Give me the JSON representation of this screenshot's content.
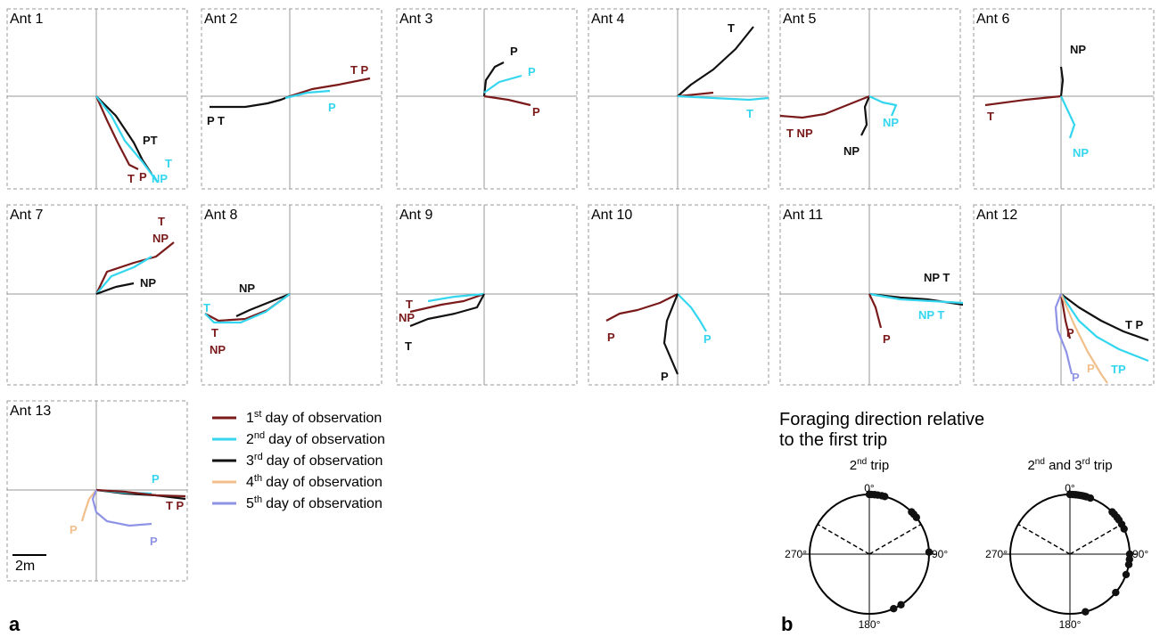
{
  "panels": [
    {
      "name": "Ant 1",
      "marks": [
        {
          "text": "PT",
          "c": "k"
        },
        {
          "text": "T",
          "c": "r"
        },
        {
          "text": "P",
          "c": "r"
        },
        {
          "text": "T",
          "c": "c"
        },
        {
          "text": "NP",
          "c": "c"
        }
      ]
    },
    {
      "name": "Ant 2",
      "marks": [
        {
          "text": "T P",
          "c": "r"
        },
        {
          "text": "P",
          "c": "c"
        },
        {
          "text": "P T",
          "c": "k"
        }
      ]
    },
    {
      "name": "Ant 3",
      "marks": [
        {
          "text": "P",
          "c": "k"
        },
        {
          "text": "P",
          "c": "c"
        },
        {
          "text": "P",
          "c": "r"
        }
      ]
    },
    {
      "name": "Ant 4",
      "marks": [
        {
          "text": "T",
          "c": "k"
        },
        {
          "text": "T",
          "c": "c"
        }
      ]
    },
    {
      "name": "Ant 5",
      "marks": [
        {
          "text": "NP",
          "c": "c"
        },
        {
          "text": "T NP",
          "c": "r"
        },
        {
          "text": "NP",
          "c": "k"
        }
      ]
    },
    {
      "name": "Ant 6",
      "marks": [
        {
          "text": "NP",
          "c": "k"
        },
        {
          "text": "T",
          "c": "r"
        },
        {
          "text": "NP",
          "c": "c"
        }
      ]
    },
    {
      "name": "Ant 7",
      "marks": [
        {
          "text": "T",
          "c": "r"
        },
        {
          "text": "NP",
          "c": "r"
        },
        {
          "text": "NP",
          "c": "k"
        }
      ]
    },
    {
      "name": "Ant 8",
      "marks": [
        {
          "text": "NP",
          "c": "k"
        },
        {
          "text": "T",
          "c": "c"
        },
        {
          "text": "T",
          "c": "r"
        },
        {
          "text": "NP",
          "c": "r"
        }
      ]
    },
    {
      "name": "Ant 9",
      "marks": [
        {
          "text": "T",
          "c": "r"
        },
        {
          "text": "NP",
          "c": "r"
        },
        {
          "text": "T",
          "c": "k"
        }
      ]
    },
    {
      "name": "Ant 10",
      "marks": [
        {
          "text": "P",
          "c": "r"
        },
        {
          "text": "P",
          "c": "c"
        },
        {
          "text": "P",
          "c": "k"
        }
      ]
    },
    {
      "name": "Ant 11",
      "marks": [
        {
          "text": "NP T",
          "c": "k"
        },
        {
          "text": "NP  T",
          "c": "c"
        },
        {
          "text": "P",
          "c": "r"
        }
      ]
    },
    {
      "name": "Ant 12",
      "marks": [
        {
          "text": "T P",
          "c": "k"
        },
        {
          "text": "P",
          "c": "r"
        },
        {
          "text": "TP",
          "c": "c"
        },
        {
          "text": "P",
          "c": "o"
        },
        {
          "text": "P",
          "c": "v"
        }
      ]
    },
    {
      "name": "Ant 13",
      "marks": [
        {
          "text": "P",
          "c": "c"
        },
        {
          "text": "T P",
          "c": "r"
        },
        {
          "text": "P",
          "c": "o"
        },
        {
          "text": "P",
          "c": "v"
        }
      ]
    }
  ],
  "scale_bar": "2m",
  "legend": [
    {
      "ord": "1",
      "sup": "st",
      "text": "day of observation",
      "color": "#7a1a1a"
    },
    {
      "ord": "2",
      "sup": "nd",
      "text": "day of observation",
      "color": "#33d6ee"
    },
    {
      "ord": "3",
      "sup": "rd",
      "text": "day of observation",
      "color": "#111111"
    },
    {
      "ord": "4",
      "sup": "th",
      "text": "day of observation",
      "color": "#f2bf8c"
    },
    {
      "ord": "5",
      "sup": "th",
      "text": "day of observation",
      "color": "#8f93e6"
    }
  ],
  "panel_a_label": "a",
  "panel_b_label": "b",
  "polar_title_line1": "Foraging direction relative",
  "polar_title_line2": "to the first trip",
  "polar": [
    {
      "title": {
        "ord": "2",
        "sup": "nd",
        "rest": " trip"
      },
      "angles_deg": [
        0,
        2,
        5,
        8,
        12,
        15,
        45,
        48,
        52,
        88,
        148,
        156
      ]
    },
    {
      "title": {
        "ord": "2",
        "sup": "nd",
        "mid": " and 3",
        "sup2": "rd",
        "rest": " trip"
      },
      "angles_deg": [
        0,
        2,
        4,
        6,
        8,
        10,
        12,
        14,
        16,
        20,
        45,
        48,
        52,
        55,
        60,
        65,
        90,
        95,
        100,
        110,
        130,
        165
      ]
    }
  ],
  "polar_ticks": {
    "top": "0°",
    "right": "90°",
    "bottom": "180°",
    "left": "270°"
  },
  "colors": {
    "r": "#7a1a1a",
    "c": "#33d6ee",
    "k": "#111111",
    "o": "#f2bf8c",
    "v": "#8f93e6",
    "axis": "#999999",
    "frame": "#999999"
  }
}
